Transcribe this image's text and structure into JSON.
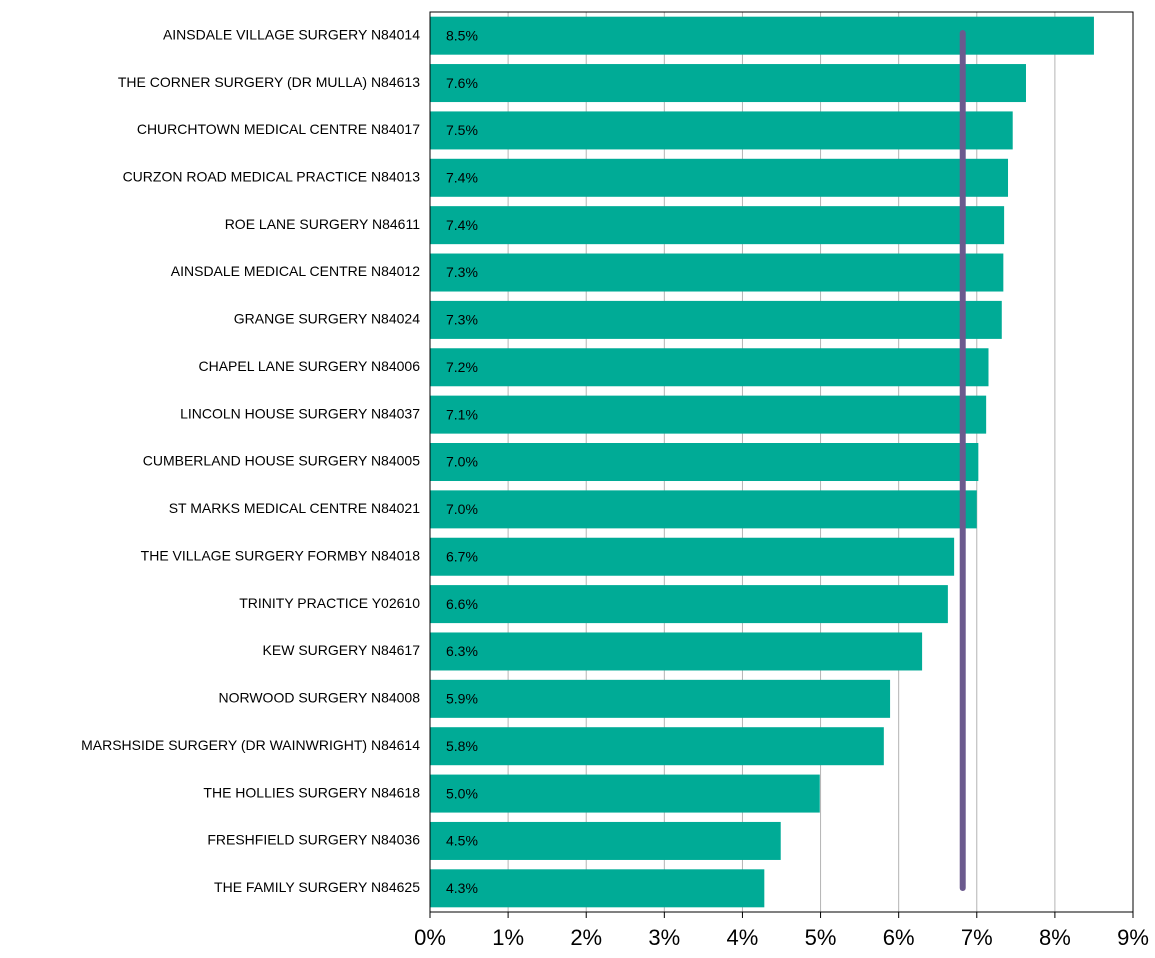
{
  "chart_data": {
    "type": "bar",
    "orientation": "horizontal",
    "categories": [
      "AINSDALE VILLAGE SURGERY N84014",
      "THE CORNER SURGERY (DR MULLA) N84613",
      "CHURCHTOWN MEDICAL CENTRE N84017",
      "CURZON ROAD MEDICAL PRACTICE N84013",
      "ROE LANE SURGERY N84611",
      "AINSDALE MEDICAL CENTRE N84012",
      "GRANGE SURGERY N84024",
      "CHAPEL LANE SURGERY N84006",
      "LINCOLN HOUSE SURGERY N84037",
      "CUMBERLAND HOUSE SURGERY N84005",
      "ST MARKS MEDICAL CENTRE N84021",
      "THE VILLAGE SURGERY FORMBY N84018",
      "TRINITY PRACTICE Y02610",
      "KEW SURGERY N84617",
      "NORWOOD SURGERY N84008",
      "MARSHSIDE SURGERY (DR WAINWRIGHT) N84614",
      "THE HOLLIES SURGERY N84618",
      "FRESHFIELD SURGERY N84036",
      "THE FAMILY SURGERY N84625"
    ],
    "values": [
      8.5,
      7.63,
      7.46,
      7.4,
      7.35,
      7.34,
      7.32,
      7.15,
      7.12,
      7.02,
      7.0,
      6.71,
      6.63,
      6.3,
      5.89,
      5.81,
      4.99,
      4.49,
      4.28
    ],
    "value_labels": [
      "8.5%",
      "7.6%",
      "7.5%",
      "7.4%",
      "7.4%",
      "7.3%",
      "7.3%",
      "7.2%",
      "7.1%",
      "7.0%",
      "7.0%",
      "6.7%",
      "6.6%",
      "6.3%",
      "5.9%",
      "5.8%",
      "5.0%",
      "4.5%",
      "4.3%"
    ],
    "color": "#00ab96",
    "xlim": [
      0,
      9
    ],
    "xticks": [
      {
        "value": 0,
        "label": "0%"
      },
      {
        "value": 1,
        "label": "1%"
      },
      {
        "value": 2,
        "label": "2%"
      },
      {
        "value": 3,
        "label": "3%"
      },
      {
        "value": 4,
        "label": "4%"
      },
      {
        "value": 5,
        "label": "5%"
      },
      {
        "value": 6,
        "label": "6%"
      },
      {
        "value": 7,
        "label": "7%"
      },
      {
        "value": 8,
        "label": "8%"
      },
      {
        "value": 9,
        "label": "9%"
      }
    ],
    "grid": true,
    "reference_line": {
      "value": 6.82,
      "color": "#6b5a8e"
    }
  }
}
